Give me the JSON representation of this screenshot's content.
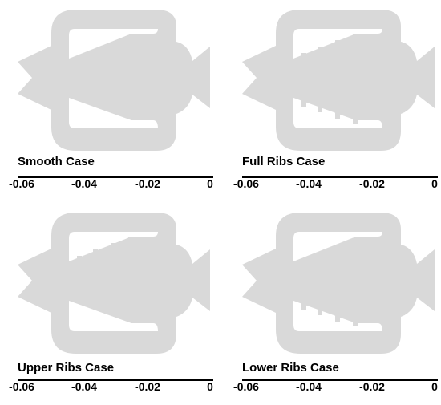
{
  "panels": [
    {
      "label": "Smooth Case",
      "ribs": "none"
    },
    {
      "label": "Full Ribs Case",
      "ribs": "both"
    },
    {
      "label": "Upper Ribs Case",
      "ribs": "upper"
    },
    {
      "label": "Lower Ribs Case",
      "ribs": "lower"
    }
  ],
  "axis": {
    "ticks": [
      "-0.06",
      "-0.04",
      "-0.02",
      "0"
    ],
    "tick_values": [
      -0.06,
      -0.04,
      -0.02,
      0
    ]
  },
  "colors": {
    "shape": "#d9d9d9",
    "background": "#ffffff",
    "text": "#000000"
  }
}
